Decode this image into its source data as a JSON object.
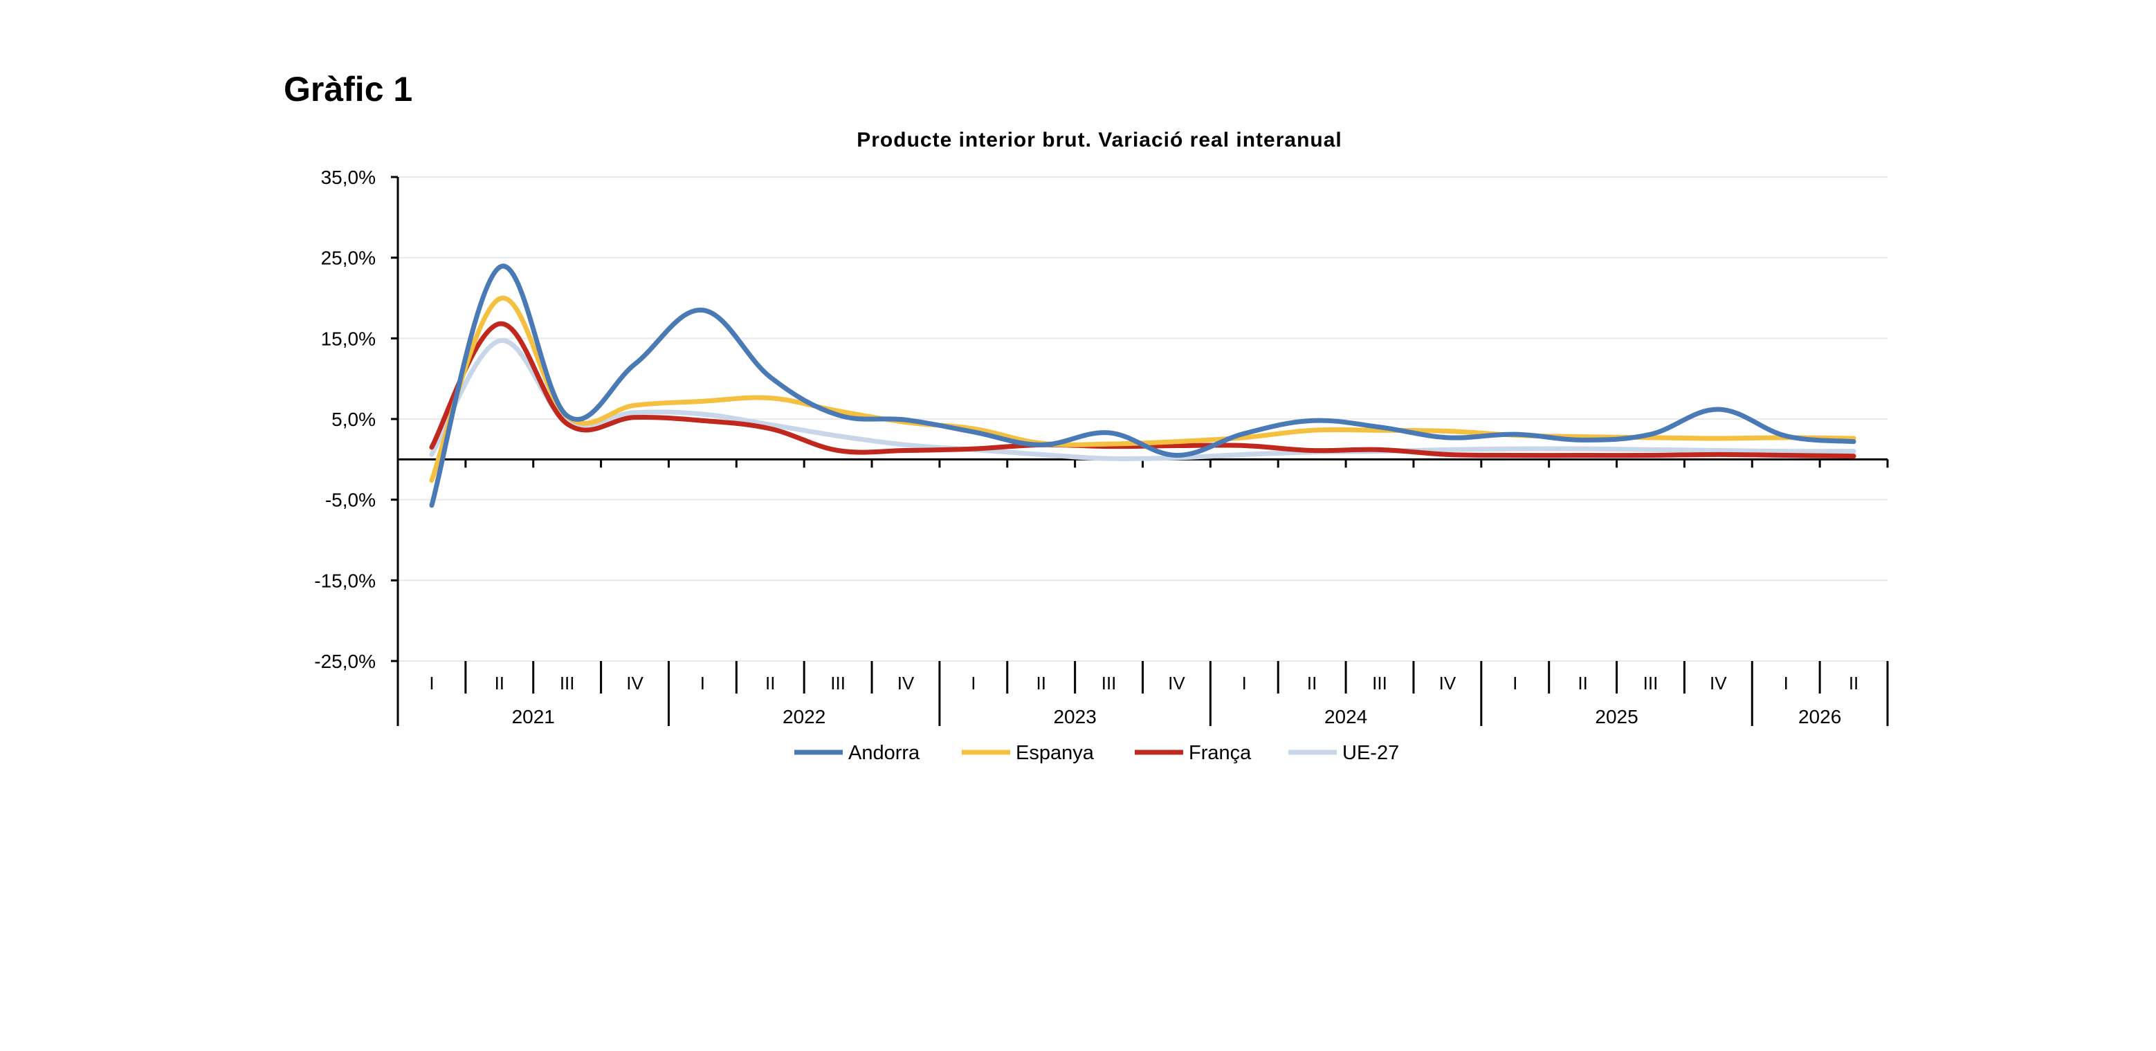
{
  "figure_label": "Gràfic 1",
  "chart_data": {
    "type": "line",
    "title": "Producte interior brut. Variació real interanual",
    "xlabel": "",
    "ylabel": "",
    "ylim": [
      -25,
      35
    ],
    "yticks": [
      35,
      25,
      15,
      5,
      -5,
      -15,
      -25
    ],
    "ytick_labels": [
      "35,0%",
      "25,0%",
      "15,0%",
      "5,0%",
      "-5,0%",
      "-15,0%",
      "-25,0%"
    ],
    "grid": true,
    "legend_position": "bottom",
    "x": [
      "2021 I",
      "2021 II",
      "2021 III",
      "2021 IV",
      "2022 I",
      "2022 II",
      "2022 III",
      "2022 IV",
      "2023 I",
      "2023 II",
      "2023 III",
      "2023 IV",
      "2024 I",
      "2024 II",
      "2024 III",
      "2024 IV",
      "2025 I",
      "2025 II",
      "2025 III",
      "2025 IV",
      "2026 I",
      "2026 II"
    ],
    "quarter_labels": [
      "I",
      "II",
      "III",
      "IV",
      "I",
      "II",
      "III",
      "IV",
      "I",
      "II",
      "III",
      "IV",
      "I",
      "II",
      "III",
      "IV",
      "I",
      "II",
      "III",
      "IV",
      "I",
      "II"
    ],
    "years": [
      {
        "label": "2021",
        "quarters": 4
      },
      {
        "label": "2022",
        "quarters": 4
      },
      {
        "label": "2023",
        "quarters": 4
      },
      {
        "label": "2024",
        "quarters": 4
      },
      {
        "label": "2025",
        "quarters": 4
      },
      {
        "label": "2026",
        "quarters": 2
      }
    ],
    "series": [
      {
        "name": "Andorra",
        "color": "#4a7ab5",
        "values": [
          -5.7,
          23.8,
          5.4,
          11.8,
          18.5,
          10.2,
          5.5,
          4.9,
          3.4,
          1.8,
          3.3,
          0.5,
          3.2,
          4.8,
          4.0,
          2.7,
          3.1,
          2.4,
          3.1,
          6.2,
          2.9,
          2.2
        ]
      },
      {
        "name": "Espanya",
        "color": "#f5c040",
        "values": [
          -2.6,
          19.9,
          5.3,
          6.7,
          7.2,
          7.6,
          6.0,
          4.6,
          3.8,
          2.0,
          1.9,
          2.2,
          2.7,
          3.6,
          3.6,
          3.5,
          3.0,
          2.8,
          2.7,
          2.6,
          2.7,
          2.6
        ]
      },
      {
        "name": "França",
        "color": "#c0281e",
        "values": [
          1.5,
          16.8,
          4.4,
          5.2,
          4.8,
          3.8,
          1.1,
          1.1,
          1.3,
          1.8,
          1.6,
          1.7,
          1.7,
          1.1,
          1.2,
          0.6,
          0.5,
          0.5,
          0.5,
          0.6,
          0.5,
          0.4
        ]
      },
      {
        "name": "UE-27",
        "color": "#c8d6ea",
        "values": [
          0.6,
          14.7,
          4.8,
          5.8,
          5.6,
          4.3,
          2.9,
          1.8,
          1.2,
          0.6,
          0.1,
          0.2,
          0.6,
          0.9,
          1.0,
          1.2,
          1.3,
          1.3,
          1.2,
          1.1,
          1.0,
          1.0
        ]
      }
    ]
  }
}
